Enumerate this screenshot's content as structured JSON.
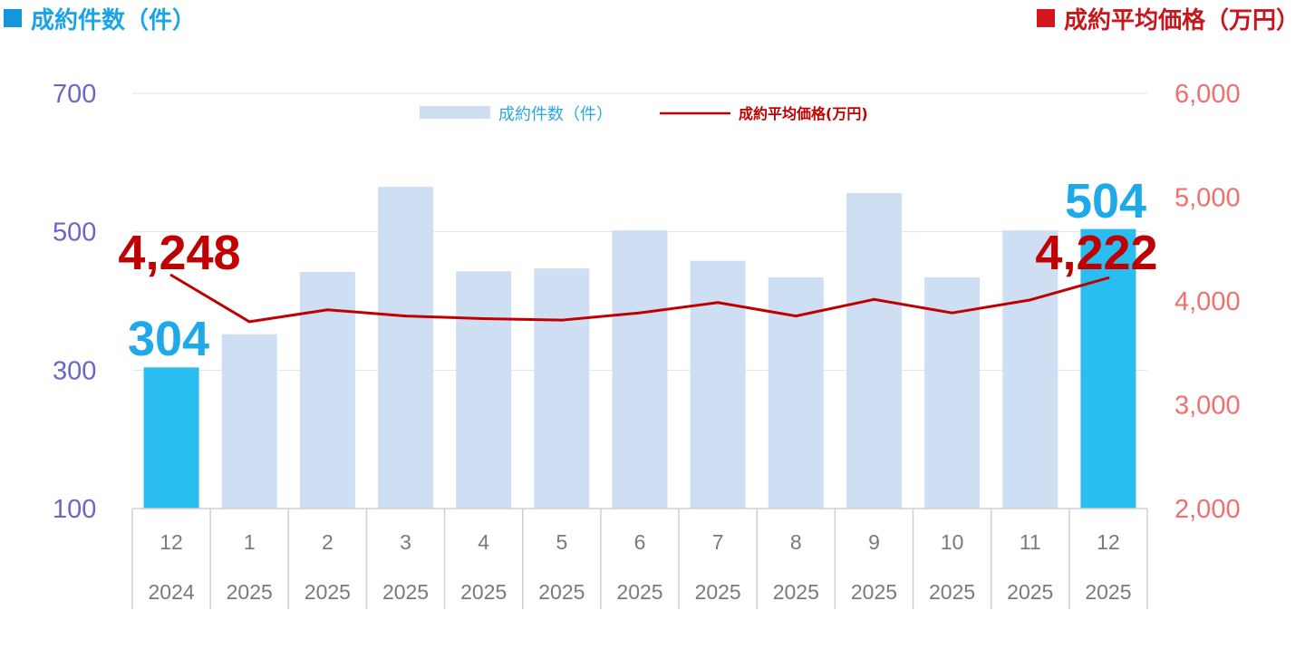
{
  "header": {
    "left_title": "成約件数（件）",
    "right_title": "成約平均価格（万円）"
  },
  "colors": {
    "bar": "#cfdff3",
    "bar_highlight": "#2abdef",
    "line": "#c00000",
    "left_axis": "#6a66c8",
    "right_axis": "#f07070"
  },
  "chart_data": {
    "type": "bar",
    "legend": {
      "bar_label": "成約件数（件）",
      "line_label": "成約平均価格(万円)",
      "placement": "top-center"
    },
    "categories": [
      {
        "month": "12",
        "year": "2024"
      },
      {
        "month": "1",
        "year": "2025"
      },
      {
        "month": "2",
        "year": "2025"
      },
      {
        "month": "3",
        "year": "2025"
      },
      {
        "month": "4",
        "year": "2025"
      },
      {
        "month": "5",
        "year": "2025"
      },
      {
        "month": "6",
        "year": "2025"
      },
      {
        "month": "7",
        "year": "2025"
      },
      {
        "month": "8",
        "year": "2025"
      },
      {
        "month": "9",
        "year": "2025"
      },
      {
        "month": "10",
        "year": "2025"
      },
      {
        "month": "11",
        "year": "2025"
      },
      {
        "month": "12",
        "year": "2025"
      }
    ],
    "series": [
      {
        "name": "成約件数（件）",
        "type": "bar",
        "axis": "left",
        "values": [
          304,
          352,
          442,
          565,
          443,
          447,
          502,
          458,
          434,
          556,
          434,
          502,
          504
        ],
        "highlight_indices": [
          0,
          12
        ]
      },
      {
        "name": "成約平均価格(万円)",
        "type": "line",
        "axis": "right",
        "values": [
          4248,
          3800,
          3915,
          3855,
          3830,
          3815,
          3885,
          3985,
          3855,
          4015,
          3885,
          4010,
          4222
        ]
      }
    ],
    "left_axis": {
      "ticks": [
        "700",
        "500",
        "300",
        "100"
      ],
      "ylim": [
        100,
        700
      ]
    },
    "right_axis": {
      "ticks": [
        "6,000",
        "5,000",
        "4,000",
        "3,000",
        "2,000"
      ],
      "ylim": [
        2000,
        6000
      ]
    },
    "annotations": {
      "first_count": "304",
      "last_count": "504",
      "first_price": "4,248",
      "last_price": "4,222"
    },
    "grid": true
  }
}
